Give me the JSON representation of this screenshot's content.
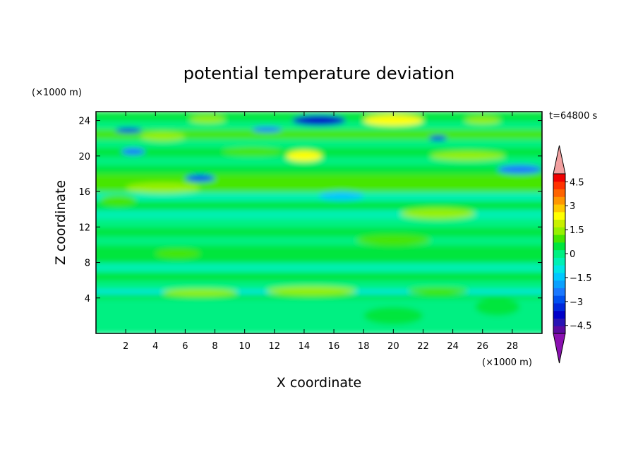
{
  "chart_data": {
    "type": "heatmap",
    "title": "potential temperature deviation",
    "xlabel": "X coordinate",
    "ylabel": "Z coordinate",
    "x_unit": "(×1000 m)",
    "y_unit": "(×1000 m)",
    "time_label": "t=64800 s",
    "xlim": [
      0,
      30
    ],
    "ylim": [
      0,
      25
    ],
    "xticks": [
      2,
      4,
      6,
      8,
      10,
      12,
      14,
      16,
      18,
      20,
      22,
      24,
      26,
      28
    ],
    "yticks": [
      4,
      8,
      12,
      16,
      20,
      24
    ],
    "colorbar": {
      "levels": [
        -5,
        -4.5,
        -4,
        -3.5,
        -3,
        -2.5,
        -2,
        -1.5,
        -1,
        -0.5,
        0,
        0.5,
        1,
        1.5,
        2,
        2.5,
        3,
        3.5,
        4,
        4.5,
        5
      ],
      "tick_labels": [
        "4.5",
        "3",
        "1.5",
        "0",
        "−1.5",
        "−3",
        "−4.5"
      ],
      "tick_values": [
        4.5,
        3,
        1.5,
        0,
        -1.5,
        -3,
        -4.5
      ],
      "colors": [
        "#5a0aa0",
        "#2814b4",
        "#0000c8",
        "#0028dc",
        "#0050f0",
        "#1a78ff",
        "#0aa0ff",
        "#00c8ff",
        "#00e6e6",
        "#00f0b4",
        "#00f082",
        "#00e63c",
        "#46e600",
        "#96f000",
        "#c8f000",
        "#ffff00",
        "#ffc800",
        "#ff9600",
        "#ff6400",
        "#ff3200",
        "#f00000"
      ],
      "under_color": "#8a10b0",
      "over_color": "#f2a0a0"
    },
    "bands": [
      {
        "z": 0.5,
        "value": 0.3
      },
      {
        "z": 1.5,
        "value": 0.3
      },
      {
        "z": 2.5,
        "value": 0.4
      },
      {
        "z": 3.5,
        "value": 0.5
      },
      {
        "z": 4.5,
        "value": 1.0
      },
      {
        "z": 5.0,
        "value": -0.6
      },
      {
        "z": 5.5,
        "value": 0.4
      },
      {
        "z": 6.5,
        "value": 0.9
      },
      {
        "z": 7.5,
        "value": -0.2
      },
      {
        "z": 8.5,
        "value": 0.6
      },
      {
        "z": 9.5,
        "value": 0.8
      },
      {
        "z": 10.5,
        "value": 0.5
      },
      {
        "z": 11.5,
        "value": 0.7
      },
      {
        "z": 12.5,
        "value": 0.5
      },
      {
        "z": 13.5,
        "value": -0.3
      },
      {
        "z": 14.5,
        "value": 0.8
      },
      {
        "z": 15.5,
        "value": -0.2
      },
      {
        "z": 16.5,
        "value": 1.4
      },
      {
        "z": 17.5,
        "value": 1.2
      },
      {
        "z": 18.5,
        "value": 0.6
      },
      {
        "z": 19.5,
        "value": 0.3
      },
      {
        "z": 20.5,
        "value": 0.8
      },
      {
        "z": 21.5,
        "value": 0.5
      },
      {
        "z": 22.5,
        "value": 1.1
      },
      {
        "z": 23.5,
        "value": 0.4
      },
      {
        "z": 24.5,
        "value": 0.9
      }
    ],
    "features": [
      {
        "x": 2.2,
        "z": 22.9,
        "rx": 0.9,
        "rz": 0.3,
        "value": -3.0
      },
      {
        "x": 4.5,
        "z": 22.2,
        "rx": 1.5,
        "rz": 0.5,
        "value": 1.8
      },
      {
        "x": 7.5,
        "z": 24.1,
        "rx": 1.2,
        "rz": 0.4,
        "value": 1.6
      },
      {
        "x": 11.5,
        "z": 23.0,
        "rx": 1.0,
        "rz": 0.3,
        "value": -2.2
      },
      {
        "x": 15.0,
        "z": 24.0,
        "rx": 1.8,
        "rz": 0.6,
        "value": -3.5
      },
      {
        "x": 20.0,
        "z": 24.0,
        "rx": 2.0,
        "rz": 0.6,
        "value": 2.8
      },
      {
        "x": 23.0,
        "z": 22.0,
        "rx": 0.6,
        "rz": 0.3,
        "value": -3.0
      },
      {
        "x": 26.0,
        "z": 24.0,
        "rx": 1.2,
        "rz": 0.4,
        "value": 1.8
      },
      {
        "x": 14.0,
        "z": 20.0,
        "rx": 1.2,
        "rz": 0.6,
        "value": 2.6
      },
      {
        "x": 10.5,
        "z": 20.5,
        "rx": 2.0,
        "rz": 0.5,
        "value": 1.5
      },
      {
        "x": 7.0,
        "z": 17.5,
        "rx": 1.0,
        "rz": 0.4,
        "value": -2.6
      },
      {
        "x": 2.5,
        "z": 20.5,
        "rx": 0.8,
        "rz": 0.4,
        "value": -2.0
      },
      {
        "x": 28.5,
        "z": 18.5,
        "rx": 1.5,
        "rz": 0.5,
        "value": -2.2
      },
      {
        "x": 25.0,
        "z": 20.0,
        "rx": 2.5,
        "rz": 0.5,
        "value": 1.6
      },
      {
        "x": 4.5,
        "z": 16.4,
        "rx": 2.5,
        "rz": 0.6,
        "value": 2.0
      },
      {
        "x": 16.5,
        "z": 15.5,
        "rx": 1.5,
        "rz": 0.5,
        "value": -1.3
      },
      {
        "x": 23.0,
        "z": 13.5,
        "rx": 2.5,
        "rz": 0.6,
        "value": 1.8
      },
      {
        "x": 1.5,
        "z": 15.0,
        "rx": 1.2,
        "rz": 0.6,
        "value": 1.4
      },
      {
        "x": 20.0,
        "z": 10.5,
        "rx": 2.5,
        "rz": 0.6,
        "value": 1.3
      },
      {
        "x": 5.5,
        "z": 9.0,
        "rx": 1.5,
        "rz": 0.5,
        "value": 1.5
      },
      {
        "x": 14.5,
        "z": 4.8,
        "rx": 3.0,
        "rz": 0.5,
        "value": 1.7
      },
      {
        "x": 7.0,
        "z": 4.6,
        "rx": 2.5,
        "rz": 0.4,
        "value": 1.6
      },
      {
        "x": 23.0,
        "z": 4.8,
        "rx": 2.0,
        "rz": 0.4,
        "value": 1.3
      },
      {
        "x": 27.0,
        "z": 3.0,
        "rx": 1.5,
        "rz": 1.0,
        "value": 0.8
      },
      {
        "x": 20.0,
        "z": 2.0,
        "rx": 2.0,
        "rz": 1.0,
        "value": 0.8
      }
    ]
  }
}
